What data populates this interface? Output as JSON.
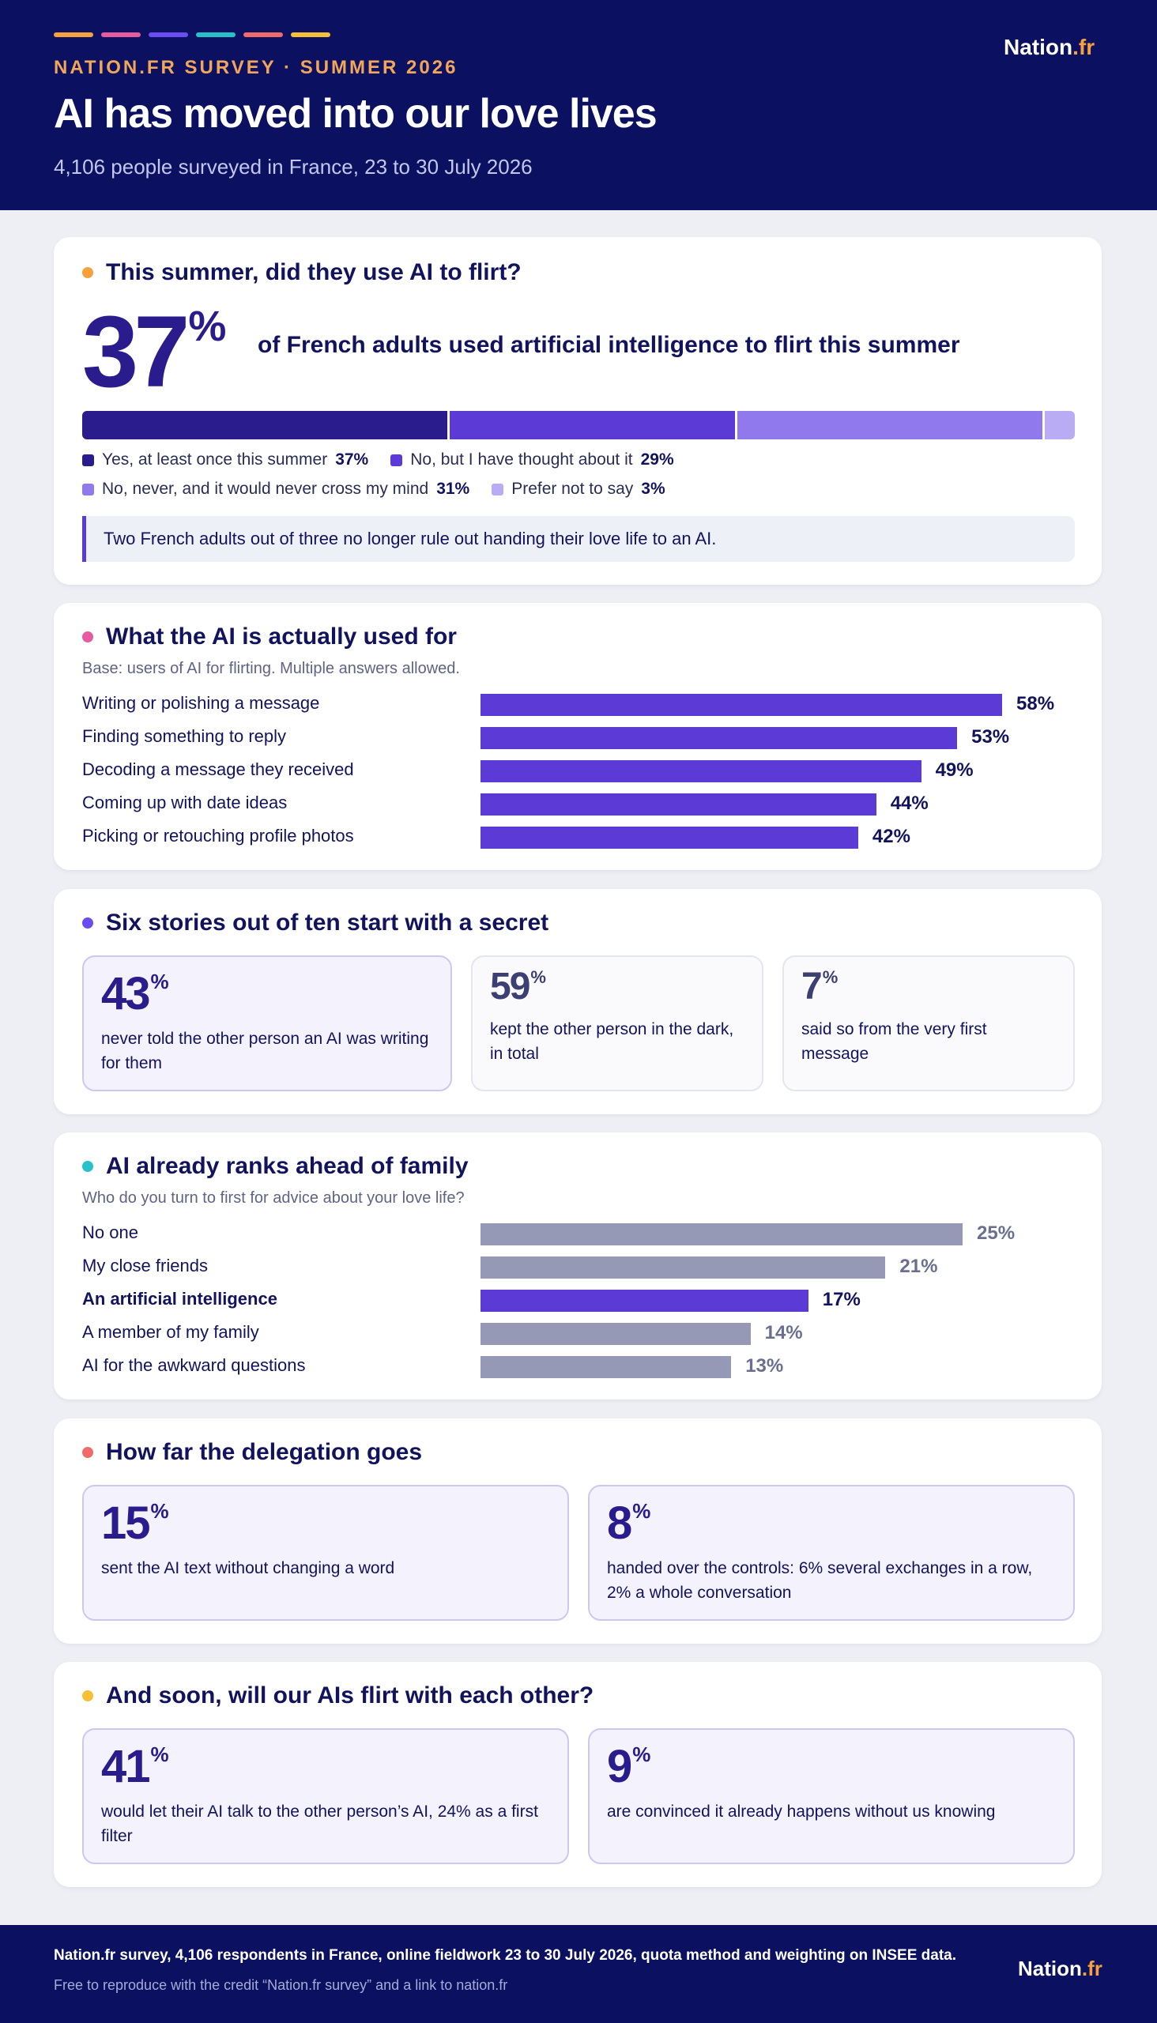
{
  "header": {
    "kicker": "NATION.FR SURVEY · SUMMER 2026",
    "title": "AI has moved into our love lives",
    "subtitle": "4,106 people surveyed in France, 23 to 30 July 2026",
    "logo_main": "Nation",
    "logo_tld": ".fr",
    "stripe_colors": [
      "#f7a13c",
      "#e65aa0",
      "#6a4cf0",
      "#27c1c9",
      "#f06a6a",
      "#f5c038"
    ]
  },
  "colors": {
    "accent_dark": "#2b1c8e",
    "accent": "#5b3ad6",
    "muted_bar": "#9699b6",
    "muted_value": "#6a6e8f"
  },
  "section1": {
    "title": "This summer, did they use AI to flirt?",
    "dot_color": "#f7a13c",
    "big_number": "37",
    "big_suffix": "%",
    "big_text": "of French adults used artificial intelligence to flirt this summer",
    "callout": "Two French adults out of three no longer rule out handing their love life to an AI."
  },
  "section2": {
    "title": "What the AI is actually used for",
    "dot_color": "#e65aa0",
    "base": "Base: users of AI for flirting. Multiple answers allowed."
  },
  "section3": {
    "title": "Six stories out of ten start with a secret",
    "dot_color": "#6a4cf0",
    "stats": [
      {
        "value": "43",
        "suffix": "%",
        "text": "never told the other person an AI was writing for them"
      },
      {
        "value": "59",
        "suffix": "%",
        "text": "kept the other person in the dark, in total"
      },
      {
        "value": "7",
        "suffix": "%",
        "text": "said so from the very first message"
      }
    ]
  },
  "section4": {
    "title": "AI already ranks ahead of family",
    "dot_color": "#27c1c9",
    "base": "Who do you turn to first for advice about your love life?"
  },
  "section5": {
    "title": "How far the delegation goes",
    "dot_color": "#f06a6a",
    "stats": [
      {
        "value": "15",
        "suffix": "%",
        "text": "sent the AI text without changing a word"
      },
      {
        "value": "8",
        "suffix": "%",
        "text": "handed over the controls: 6% several exchanges in a row, 2% a whole conversation"
      }
    ]
  },
  "section6": {
    "title": "And soon, will our AIs flirt with each other?",
    "dot_color": "#f5c038",
    "stats": [
      {
        "value": "41",
        "suffix": "%",
        "text": "would let their AI talk to the other person’s AI, 24% as a first filter"
      },
      {
        "value": "9",
        "suffix": "%",
        "text": "are convinced it already happens without us knowing"
      }
    ]
  },
  "footer": {
    "main": "Nation.fr survey, 4,106 respondents in France, online fieldwork 23 to 30 July 2026, quota method and weighting on INSEE data.",
    "sub": "Free to reproduce with the credit “Nation.fr survey” and a link to nation.fr",
    "logo_main": "Nation",
    "logo_tld": ".fr"
  },
  "chart_data": [
    {
      "type": "bar",
      "orientation": "stacked-horizontal",
      "title": "This summer, did they use AI to flirt?",
      "unit": "%",
      "series": [
        {
          "name": "Yes, at least once this summer",
          "value": 37,
          "value_label": "37%",
          "color": "#2b1c8e"
        },
        {
          "name": "No, but I have thought about it",
          "value": 29,
          "value_label": "29%",
          "color": "#5b3ad6"
        },
        {
          "name": "No, never, and it would never cross my mind",
          "value": 31,
          "value_label": "31%",
          "color": "#8f79ec"
        },
        {
          "name": "Prefer not to say",
          "value": 3,
          "value_label": "3%",
          "color": "#b9acf5"
        }
      ]
    },
    {
      "type": "bar",
      "orientation": "horizontal",
      "title": "What the AI is actually used for",
      "unit": "%",
      "xlim": [
        0,
        58
      ],
      "categories": [
        "Writing or polishing a message",
        "Finding something to reply",
        "Decoding a message they received",
        "Coming up with date ideas",
        "Picking or retouching profile photos"
      ],
      "values": [
        58,
        53,
        49,
        44,
        42
      ],
      "value_labels": [
        "58%",
        "53%",
        "49%",
        "44%",
        "42%"
      ]
    },
    {
      "type": "bar",
      "orientation": "horizontal",
      "title": "AI already ranks ahead of family",
      "unit": "%",
      "xlim": [
        0,
        25
      ],
      "categories": [
        "No one",
        "My close friends",
        "An artificial intelligence",
        "A member of my family",
        "AI for the awkward questions"
      ],
      "values": [
        25,
        21,
        17,
        14,
        13
      ],
      "value_labels": [
        "25%",
        "21%",
        "17%",
        "14%",
        "13%"
      ],
      "highlight": "An artificial intelligence"
    }
  ]
}
